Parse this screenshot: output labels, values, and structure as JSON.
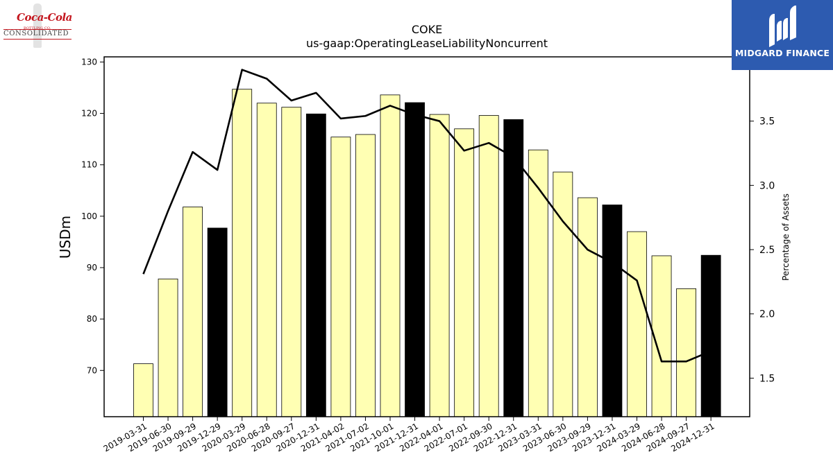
{
  "header": {
    "title": "COKE",
    "subtitle": "us-gaap:OperatingLeaseLiabilityNoncurrent"
  },
  "logos": {
    "left_script": "Coca-Cola",
    "left_small": "BOTTLING CO.",
    "left_name": "CONSOLIDATED",
    "right_brand": "MIDGARD FINANCE"
  },
  "colors": {
    "bar_default": "#ffffb3",
    "bar_highlight": "#000000",
    "line": "#000000",
    "logo_right_bg": "#2d5bb0"
  },
  "chart_data": {
    "type": "bar",
    "title": "COKE",
    "subtitle": "us-gaap:OperatingLeaseLiabilityNoncurrent",
    "ylabel": "USDm",
    "y2label": "Percentage of Assets",
    "ylim": [
      61,
      131
    ],
    "y2lim": [
      1.2,
      4.0
    ],
    "yticks": [
      70,
      80,
      90,
      100,
      110,
      120,
      130
    ],
    "y2ticks": [
      "1.5",
      "2.0",
      "2.5",
      "3.0",
      "3.5"
    ],
    "grid": false,
    "categories": [
      "2019-03-31",
      "2019-06-30",
      "2019-09-29",
      "2019-12-29",
      "2020-03-29",
      "2020-06-28",
      "2020-09-27",
      "2020-12-31",
      "2021-04-02",
      "2021-07-02",
      "2021-10-01",
      "2021-12-31",
      "2022-04-01",
      "2022-07-01",
      "2022-09-30",
      "2022-12-31",
      "2023-03-31",
      "2023-06-30",
      "2023-09-29",
      "2023-12-31",
      "2024-03-29",
      "2024-06-28",
      "2024-09-27",
      "2024-12-31"
    ],
    "series": [
      {
        "type": "bar",
        "axis": "left",
        "values": [
          71.3,
          87.8,
          101.8,
          97.7,
          124.7,
          122.0,
          121.2,
          119.9,
          115.4,
          115.9,
          123.6,
          122.1,
          119.8,
          117.0,
          119.6,
          118.8,
          112.9,
          108.6,
          103.6,
          102.2,
          97.0,
          92.3,
          85.9,
          92.4
        ],
        "highlight": [
          false,
          false,
          false,
          true,
          false,
          false,
          false,
          true,
          false,
          false,
          false,
          true,
          false,
          false,
          false,
          true,
          false,
          false,
          false,
          true,
          false,
          false,
          false,
          true
        ]
      },
      {
        "type": "line",
        "axis": "right",
        "values": [
          2.31,
          2.8,
          3.26,
          3.12,
          3.9,
          3.83,
          3.66,
          3.72,
          3.52,
          3.54,
          3.62,
          3.55,
          3.5,
          3.27,
          3.33,
          3.22,
          2.98,
          2.72,
          2.5,
          2.4,
          2.26,
          1.63,
          1.63,
          1.71
        ]
      }
    ]
  }
}
